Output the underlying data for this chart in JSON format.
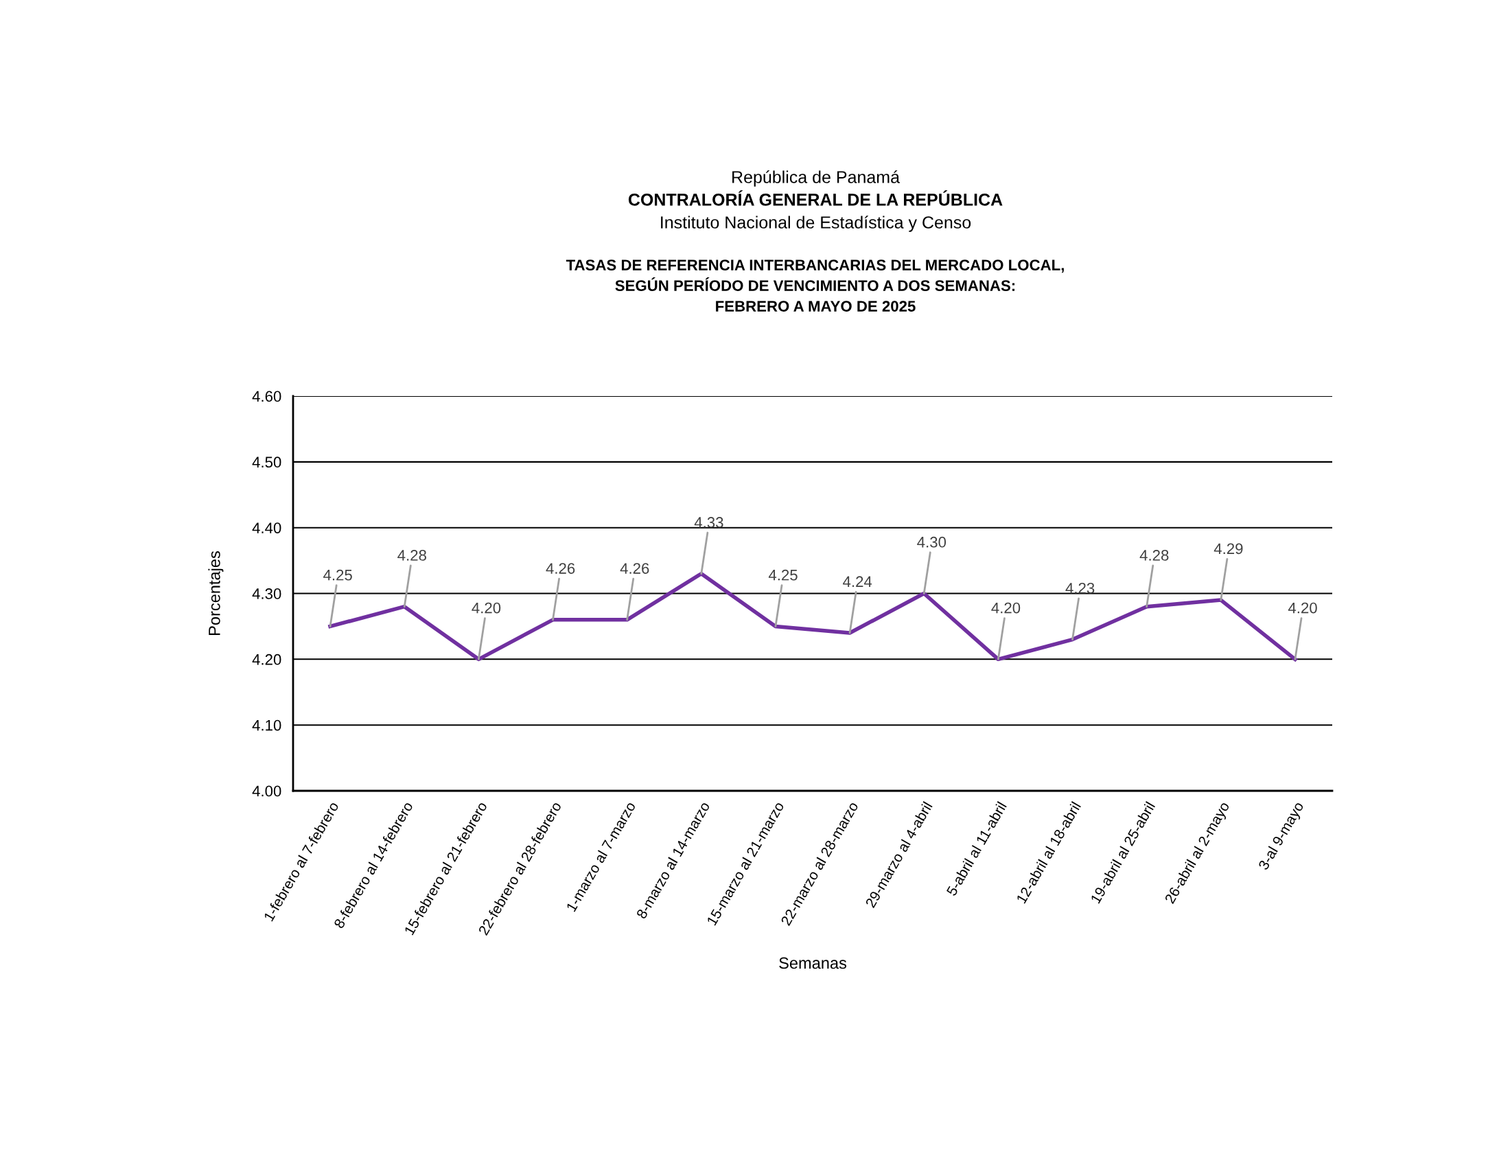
{
  "chart_data": {
    "type": "line",
    "subtitle": "República de Panamá\nCONTRALORÍA GENERAL DE LA REPÚBLICA\nInstituto Nacional de Estadística y Censo",
    "title": "TASAS DE REFERENCIA INTERBANCARIAS DEL MERCADO LOCAL,\nSEGÚN PERÍODO DE VENCIMIENTO A DOS SEMANAS:\nFEBRERO A MAYO DE 2025",
    "xlabel": "Semanas",
    "ylabel": "Porcentajes",
    "categories": [
      "1-febrero al 7-febrero",
      "8-febrero al 14-febrero",
      "15-febrero al 21-febrero",
      "22-febrero al 28-febrero",
      "1-marzo al 7-marzo",
      "8-marzo al 14-marzo",
      "15-marzo al 21-marzo",
      "22-marzo al 28-marzo",
      "29-marzo al 4-abril",
      "5-abril al 11-abril",
      "12-abril al 18-abril",
      "19-abril al 25-abril",
      "26-abril al 2-mayo",
      "3-al 9-mayo"
    ],
    "series": [
      {
        "color": "#7030a0",
        "values": [
          4.25,
          4.28,
          4.2,
          4.26,
          4.26,
          4.33,
          4.25,
          4.24,
          4.3,
          4.2,
          4.23,
          4.28,
          4.29,
          4.2
        ]
      }
    ],
    "value_labels": [
      "4.25",
      "4.28",
      "4.20",
      "4.26",
      "4.26",
      "4.33",
      "4.25",
      "4.24",
      "4.30",
      "4.20",
      "4.23",
      "4.28",
      "4.29",
      "4.20"
    ],
    "ylim": [
      4.0,
      4.6
    ],
    "yticks": [
      {
        "value": 4.0,
        "label": "4.00"
      },
      {
        "value": 4.1,
        "label": "4.10"
      },
      {
        "value": 4.2,
        "label": "4.20"
      },
      {
        "value": 4.3,
        "label": "4.30"
      },
      {
        "value": 4.4,
        "label": "4.40"
      },
      {
        "value": 4.5,
        "label": "4.50"
      },
      {
        "value": 4.6,
        "label": "4.60"
      }
    ],
    "grid": "y",
    "marker": "none",
    "line_style": "solid"
  }
}
